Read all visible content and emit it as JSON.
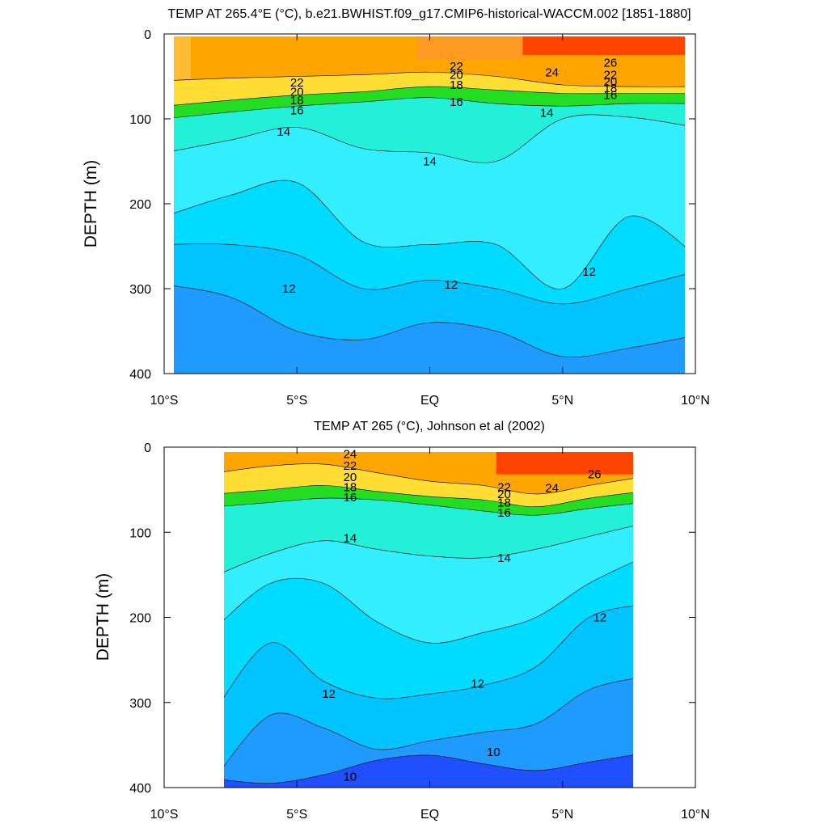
{
  "colors": {
    "c10": "#1f4fff",
    "c11": "#1f9bff",
    "c12": "#00c3ff",
    "c13": "#00dcff",
    "c14": "#33eeff",
    "c15": "#22f0d8",
    "c16": "#00ee90",
    "c17": "#22dd22",
    "c18": "#aaf000",
    "c19": "#ffff33",
    "c20": "#ffdd33",
    "c22": "#ffbb33",
    "c24": "#ffa500",
    "c25": "#ff9922",
    "c26": "#ff7700",
    "c27": "#ff4400",
    "frame": "#000000"
  },
  "chart_data": [
    {
      "type": "contour",
      "title": "TEMP AT 265.4°E (°C), b.e21.BWHIST.f09_g17.CMIP6-historical-WACCM.002 [1851-1880]",
      "ylabel": "DEPTH (m)",
      "xlabel": "",
      "xlim": [
        -10,
        10
      ],
      "ylim": [
        400,
        0
      ],
      "y_inverted": true,
      "x_ticks": [
        "10°S",
        "5°S",
        "EQ",
        "5°N",
        "10°N"
      ],
      "y_ticks": [
        "0",
        "100",
        "200",
        "300",
        "400"
      ],
      "contour_labels": [
        "22",
        "20",
        "18",
        "16",
        "14",
        "14",
        "12",
        "12",
        "12",
        "22",
        "20",
        "18",
        "16",
        "24",
        "26",
        "22",
        "20",
        "18",
        "16",
        "14"
      ],
      "isotherm_depths": {
        "x": [
          -10,
          -7.5,
          -5,
          -2.5,
          0,
          2.5,
          5,
          7.5,
          10
        ],
        "t22": [
          55,
          52,
          50,
          48,
          45,
          50,
          60,
          62,
          62
        ],
        "t18": [
          85,
          78,
          72,
          68,
          62,
          66,
          70,
          70,
          70
        ],
        "t16": [
          100,
          92,
          85,
          80,
          75,
          82,
          85,
          82,
          82
        ],
        "t14": [
          140,
          125,
          110,
          135,
          140,
          150,
          100,
          98,
          110
        ],
        "t13": [
          215,
          190,
          175,
          245,
          248,
          248,
          300,
          215,
          260
        ],
        "t12": [
          248,
          248,
          260,
          300,
          290,
          300,
          318,
          300,
          280
        ],
        "t11": [
          295,
          310,
          350,
          360,
          340,
          350,
          380,
          370,
          355
        ]
      }
    },
    {
      "type": "contour",
      "title": "TEMP AT 265 (°C), Johnson et al (2002)",
      "ylabel": "DEPTH (m)",
      "xlabel": "",
      "xlim": [
        -10,
        10
      ],
      "ylim": [
        400,
        0
      ],
      "y_inverted": true,
      "data_xrange": [
        -8,
        8
      ],
      "data_yrange": [
        5,
        400
      ],
      "x_ticks": [
        "10°S",
        "5°S",
        "EQ",
        "5°N",
        "10°N"
      ],
      "y_ticks": [
        "0",
        "100",
        "200",
        "300",
        "400"
      ],
      "contour_labels": [
        "24",
        "22",
        "20",
        "18",
        "16",
        "14",
        "12",
        "12",
        "12",
        "10",
        "10",
        "22",
        "20",
        "18",
        "16",
        "14",
        "24",
        "26"
      ],
      "isotherm_depths": {
        "x": [
          -8,
          -6,
          -4,
          -2,
          0,
          2,
          4,
          6,
          8
        ],
        "t22": [
          30,
          22,
          20,
          30,
          40,
          45,
          55,
          45,
          35
        ],
        "t18": [
          55,
          50,
          45,
          52,
          58,
          62,
          70,
          60,
          52
        ],
        "t16": [
          70,
          65,
          60,
          62,
          68,
          75,
          80,
          72,
          65
        ],
        "t14": [
          150,
          125,
          110,
          120,
          128,
          130,
          120,
          105,
          90
        ],
        "t13": [
          210,
          160,
          160,
          205,
          230,
          218,
          200,
          160,
          130
        ],
        "t12": [
          305,
          230,
          275,
          295,
          290,
          280,
          258,
          200,
          185
        ],
        "t11": [
          385,
          315,
          330,
          355,
          345,
          335,
          325,
          285,
          270
        ],
        "t10": [
          390,
          395,
          385,
          368,
          362,
          372,
          380,
          370,
          360
        ]
      }
    }
  ]
}
